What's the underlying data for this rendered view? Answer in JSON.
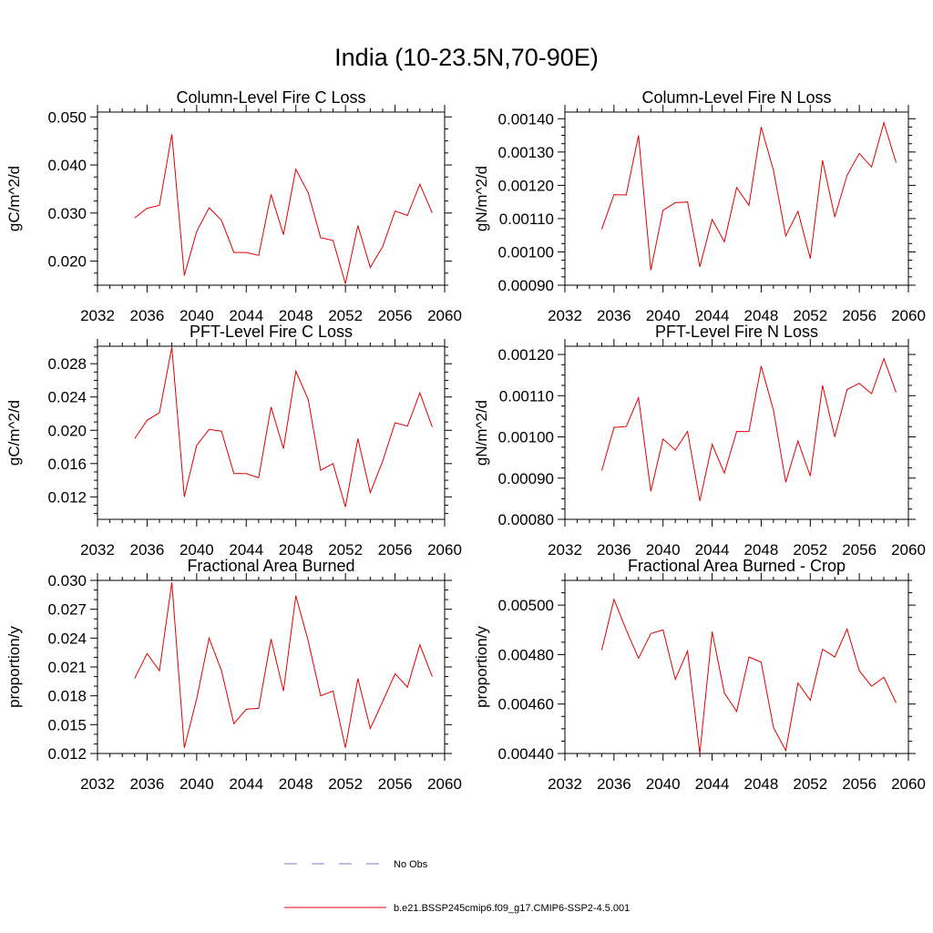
{
  "title": "India (10-23.5N,70-90E)",
  "chart_data": [
    {
      "type": "line",
      "title": "Column-Level Fire C Loss",
      "ylabel": "gC/m^2/d",
      "xlim": [
        2032,
        2060
      ],
      "xticks": [
        "2032",
        "2036",
        "2040",
        "2044",
        "2048",
        "2052",
        "2056",
        "2060"
      ],
      "ylim": [
        0.015,
        0.051
      ],
      "yticks": [
        0.02,
        0.03,
        0.04,
        0.05
      ],
      "ytick_labels": [
        "0.020",
        "0.030",
        "0.040",
        "0.050"
      ],
      "yminor": 0.0025,
      "series": [
        {
          "color": "#e00000",
          "x": [
            2035,
            2036,
            2037,
            2038,
            2039,
            2040,
            2041,
            2042,
            2043,
            2044,
            2045,
            2046,
            2047,
            2048,
            2049,
            2050,
            2051,
            2052,
            2053,
            2054,
            2055,
            2056,
            2057,
            2058,
            2059
          ],
          "values": [
            0.029,
            0.031,
            0.0316,
            0.0464,
            0.017,
            0.0262,
            0.0311,
            0.0285,
            0.0218,
            0.0218,
            0.0212,
            0.0339,
            0.0255,
            0.0391,
            0.0342,
            0.0249,
            0.0243,
            0.0153,
            0.0274,
            0.0187,
            0.023,
            0.0304,
            0.0295,
            0.036,
            0.03
          ]
        }
      ]
    },
    {
      "type": "line",
      "title": "Column-Level Fire N Loss",
      "ylabel": "gN/m^2/d",
      "xlim": [
        2032,
        2060
      ],
      "xticks": [
        "2032",
        "2036",
        "2040",
        "2044",
        "2048",
        "2052",
        "2056",
        "2060"
      ],
      "ylim": [
        0.0009,
        0.00142
      ],
      "yticks": [
        0.0009,
        0.001,
        0.0011,
        0.0012,
        0.0013,
        0.0014
      ],
      "ytick_labels": [
        "0.00090",
        "0.00100",
        "0.00110",
        "0.00120",
        "0.00130",
        "0.00140"
      ],
      "yminor": 2.5e-05,
      "series": [
        {
          "color": "#e00000",
          "x": [
            2035,
            2036,
            2037,
            2038,
            2039,
            2040,
            2041,
            2042,
            2043,
            2044,
            2045,
            2046,
            2047,
            2048,
            2049,
            2050,
            2051,
            2052,
            2053,
            2054,
            2055,
            2056,
            2057,
            2058,
            2059
          ],
          "values": [
            0.001068,
            0.001172,
            0.001171,
            0.00135,
            0.000945,
            0.001125,
            0.001148,
            0.00115,
            0.000955,
            0.001098,
            0.00103,
            0.001193,
            0.00114,
            0.001375,
            0.001245,
            0.001048,
            0.001122,
            0.00098,
            0.001275,
            0.001105,
            0.00123,
            0.001296,
            0.001255,
            0.001388,
            0.001268
          ]
        }
      ]
    },
    {
      "type": "line",
      "title": "PFT-Level Fire C Loss",
      "ylabel": "gC/m^2/d",
      "xlim": [
        2032,
        2060
      ],
      "xticks": [
        "2032",
        "2036",
        "2040",
        "2044",
        "2048",
        "2052",
        "2056",
        "2060"
      ],
      "ylim": [
        0.0093,
        0.0301
      ],
      "yticks": [
        0.012,
        0.016,
        0.02,
        0.024,
        0.028
      ],
      "ytick_labels": [
        "0.012",
        "0.016",
        "0.020",
        "0.024",
        "0.028"
      ],
      "yminor": 0.001,
      "series": [
        {
          "color": "#e00000",
          "x": [
            2035,
            2036,
            2037,
            2038,
            2039,
            2040,
            2041,
            2042,
            2043,
            2044,
            2045,
            2046,
            2047,
            2048,
            2049,
            2050,
            2051,
            2052,
            2053,
            2054,
            2055,
            2056,
            2057,
            2058,
            2059
          ],
          "values": [
            0.019,
            0.0212,
            0.0221,
            0.03,
            0.012,
            0.0182,
            0.0201,
            0.0199,
            0.0148,
            0.0148,
            0.0143,
            0.0228,
            0.0178,
            0.0271,
            0.0237,
            0.0152,
            0.016,
            0.0108,
            0.019,
            0.0125,
            0.0163,
            0.0209,
            0.0205,
            0.0245,
            0.0204
          ]
        }
      ]
    },
    {
      "type": "line",
      "title": "PFT-Level Fire N Loss",
      "ylabel": "gN/m^2/d",
      "xlim": [
        2032,
        2060
      ],
      "xticks": [
        "2032",
        "2036",
        "2040",
        "2044",
        "2048",
        "2052",
        "2056",
        "2060"
      ],
      "ylim": [
        0.0008,
        0.00122
      ],
      "yticks": [
        0.0008,
        0.0009,
        0.001,
        0.0011,
        0.0012
      ],
      "ytick_labels": [
        "0.00080",
        "0.00090",
        "0.00100",
        "0.00110",
        "0.00120"
      ],
      "yminor": 2.5e-05,
      "series": [
        {
          "color": "#e00000",
          "x": [
            2035,
            2036,
            2037,
            2038,
            2039,
            2040,
            2041,
            2042,
            2043,
            2044,
            2045,
            2046,
            2047,
            2048,
            2049,
            2050,
            2051,
            2052,
            2053,
            2054,
            2055,
            2056,
            2057,
            2058,
            2059
          ],
          "values": [
            0.000918,
            0.001023,
            0.001025,
            0.001095,
            0.000868,
            0.000995,
            0.000968,
            0.001013,
            0.000845,
            0.000982,
            0.000912,
            0.001013,
            0.001013,
            0.001172,
            0.001065,
            0.00089,
            0.00099,
            0.000905,
            0.001125,
            0.001,
            0.001115,
            0.00113,
            0.001105,
            0.00119,
            0.001108
          ]
        }
      ]
    },
    {
      "type": "line",
      "title": "Fractional Area Burned",
      "ylabel": "proportion/y",
      "xlim": [
        2032,
        2060
      ],
      "xticks": [
        "2032",
        "2036",
        "2040",
        "2044",
        "2048",
        "2052",
        "2056",
        "2060"
      ],
      "ylim": [
        0.012,
        0.03
      ],
      "yticks": [
        0.012,
        0.015,
        0.018,
        0.021,
        0.024,
        0.027,
        0.03
      ],
      "ytick_labels": [
        "0.012",
        "0.015",
        "0.018",
        "0.021",
        "0.024",
        "0.027",
        "0.030"
      ],
      "yminor": 0.001,
      "series": [
        {
          "color": "#e00000",
          "x": [
            2035,
            2036,
            2037,
            2038,
            2039,
            2040,
            2041,
            2042,
            2043,
            2044,
            2045,
            2046,
            2047,
            2048,
            2049,
            2050,
            2051,
            2052,
            2053,
            2054,
            2055,
            2056,
            2057,
            2058,
            2059
          ],
          "values": [
            0.0198,
            0.0224,
            0.0206,
            0.0298,
            0.0126,
            0.0177,
            0.024,
            0.0206,
            0.0151,
            0.0166,
            0.0167,
            0.0239,
            0.0185,
            0.0284,
            0.0237,
            0.018,
            0.0185,
            0.0126,
            0.0198,
            0.0146,
            0.0174,
            0.0203,
            0.0189,
            0.0233,
            0.02
          ]
        }
      ]
    },
    {
      "type": "line",
      "title": "Fractional Area Burned - Crop",
      "ylabel": "proportion/y",
      "xlim": [
        2032,
        2060
      ],
      "xticks": [
        "2032",
        "2036",
        "2040",
        "2044",
        "2048",
        "2052",
        "2056",
        "2060"
      ],
      "ylim": [
        0.0044,
        0.0051
      ],
      "yticks": [
        0.0044,
        0.0046,
        0.0048,
        0.005
      ],
      "ytick_labels": [
        "0.00440",
        "0.00460",
        "0.00480",
        "0.00500"
      ],
      "yminor": 5e-05,
      "series": [
        {
          "color": "#e00000",
          "x": [
            2035,
            2036,
            2037,
            2038,
            2039,
            2040,
            2041,
            2042,
            2043,
            2044,
            2045,
            2046,
            2047,
            2048,
            2049,
            2050,
            2051,
            2052,
            2053,
            2054,
            2055,
            2056,
            2057,
            2058,
            2059
          ],
          "values": [
            0.004818,
            0.005023,
            0.0049,
            0.004785,
            0.004885,
            0.0049,
            0.0047,
            0.004815,
            0.0044,
            0.004893,
            0.004645,
            0.00457,
            0.00479,
            0.00477,
            0.004505,
            0.004412,
            0.004685,
            0.004615,
            0.004822,
            0.00479,
            0.004903,
            0.004735,
            0.004672,
            0.004708,
            0.004605
          ]
        }
      ]
    }
  ],
  "legend": {
    "items": [
      {
        "label": "No Obs",
        "color": "#7b7bd6",
        "style": "dashed"
      },
      {
        "label": "b.e21.BSSP245cmip6.f09_g17.CMIP6-SSP2-4.5.001",
        "color": "#e00000",
        "style": "solid"
      }
    ]
  }
}
